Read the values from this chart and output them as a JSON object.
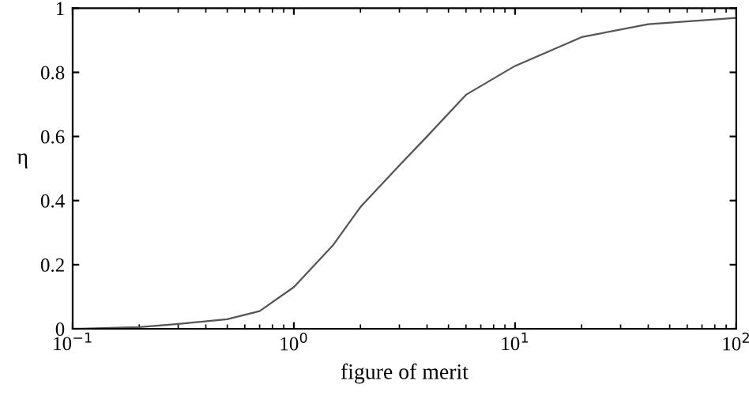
{
  "chart_data": {
    "type": "line",
    "xlabel": "figure of merit",
    "ylabel": "η",
    "log": "x",
    "x": [
      0.1,
      0.2,
      0.3,
      0.5,
      0.7,
      1,
      1.5,
      2,
      3,
      4,
      6,
      10,
      20,
      40,
      100
    ],
    "series": [
      {
        "color": "#555555",
        "values": [
          0.0,
          0.005,
          0.015,
          0.03,
          0.055,
          0.13,
          0.26,
          0.38,
          0.51,
          0.6,
          0.73,
          0.82,
          0.91,
          0.95,
          0.97
        ]
      }
    ],
    "xlim": [
      0.1,
      100
    ],
    "xticks": [
      {
        "value": 0.1,
        "label": "10$^{−1}$"
      },
      {
        "value": 1,
        "label": "10$^{0}$"
      },
      {
        "value": 10,
        "label": "10$^{1}$"
      },
      {
        "value": 100,
        "label": "10$^{2}$"
      }
    ],
    "ylim": [
      0,
      1
    ],
    "yticks": [
      0,
      0.2,
      0.4,
      0.6,
      0.8,
      1
    ],
    "grid": false,
    "marker": "none",
    "line_style": "solid"
  }
}
